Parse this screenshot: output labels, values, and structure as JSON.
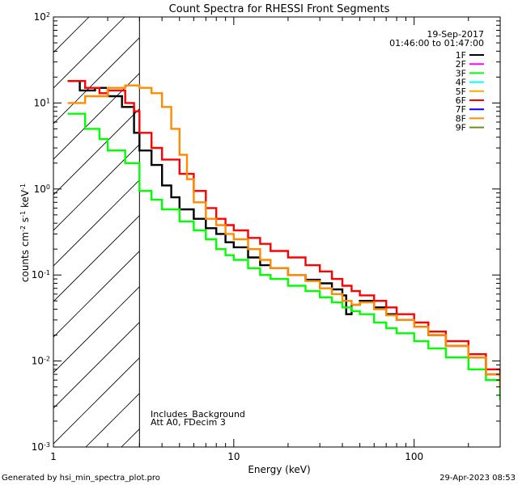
{
  "chart_data": {
    "type": "line",
    "title": "Count Spectra for RHESSI Front Segments",
    "xlabel": "Energy (keV)",
    "ylabel_parts": [
      "counts cm",
      "-2",
      " s",
      "-1",
      " keV",
      "-1"
    ],
    "x_scale": "log",
    "y_scale": "log",
    "xlim": [
      1,
      300
    ],
    "ylim": [
      0.001,
      100
    ],
    "x_ticks": [
      {
        "value": 1,
        "label": "1"
      },
      {
        "value": 10,
        "label": "10"
      },
      {
        "value": 100,
        "label": "100"
      }
    ],
    "y_ticks": [
      {
        "value": 100,
        "base": "10",
        "exp": "2"
      },
      {
        "value": 10,
        "base": "10",
        "exp": "1"
      },
      {
        "value": 1,
        "base": "10",
        "exp": "0"
      },
      {
        "value": 0.1,
        "base": "10",
        "exp": "-1"
      },
      {
        "value": 0.01,
        "base": "10",
        "exp": "-2"
      },
      {
        "value": 0.001,
        "base": "10",
        "exp": "-3"
      }
    ],
    "date": "19-Sep-2017",
    "time_range": "01:46:00 to 01:47:00",
    "hatch_region": [
      1,
      3
    ],
    "annotations": [
      "Includes_Background",
      "Att A0, FDecim 3"
    ],
    "legend": [
      {
        "label": "1F",
        "color": "#000000"
      },
      {
        "label": "2F",
        "color": "#ff00ff"
      },
      {
        "label": "3F",
        "color": "#00ff00"
      },
      {
        "label": "4F",
        "color": "#00ffff"
      },
      {
        "label": "5F",
        "color": "#ffa500"
      },
      {
        "label": "6F",
        "color": "#ff0000"
      },
      {
        "label": "7F",
        "color": "#0000ff"
      },
      {
        "label": "8F",
        "color": "#ff8c00"
      },
      {
        "label": "9F",
        "color": "#6b8e23"
      }
    ],
    "series": [
      {
        "name": "1F",
        "color": "#000000",
        "points": [
          [
            1.2,
            18
          ],
          [
            1.4,
            14
          ],
          [
            1.7,
            15
          ],
          [
            2.0,
            12
          ],
          [
            2.4,
            9
          ],
          [
            2.8,
            4.5
          ],
          [
            3.0,
            2.8
          ],
          [
            3.5,
            1.9
          ],
          [
            4.0,
            1.1
          ],
          [
            4.5,
            0.8
          ],
          [
            5,
            0.58
          ],
          [
            6,
            0.45
          ],
          [
            7,
            0.35
          ],
          [
            8,
            0.3
          ],
          [
            9,
            0.24
          ],
          [
            10,
            0.21
          ],
          [
            12,
            0.16
          ],
          [
            14,
            0.13
          ],
          [
            16,
            0.12
          ],
          [
            20,
            0.1
          ],
          [
            25,
            0.088
          ],
          [
            30,
            0.08
          ],
          [
            35,
            0.068
          ],
          [
            40,
            0.058
          ],
          [
            42,
            0.035
          ],
          [
            45,
            0.045
          ],
          [
            50,
            0.05
          ],
          [
            60,
            0.042
          ],
          [
            70,
            0.035
          ],
          [
            80,
            0.03
          ],
          [
            100,
            0.025
          ],
          [
            120,
            0.02
          ],
          [
            150,
            0.015
          ],
          [
            200,
            0.011
          ],
          [
            250,
            0.007
          ],
          [
            300,
            0.005
          ]
        ]
      },
      {
        "name": "3F",
        "color": "#00ff00",
        "points": [
          [
            1.2,
            7.5
          ],
          [
            1.5,
            5
          ],
          [
            1.8,
            3.8
          ],
          [
            2.0,
            2.8
          ],
          [
            2.5,
            2.0
          ],
          [
            3.0,
            0.95
          ],
          [
            3.5,
            0.75
          ],
          [
            4.0,
            0.58
          ],
          [
            5,
            0.42
          ],
          [
            6,
            0.33
          ],
          [
            7,
            0.26
          ],
          [
            8,
            0.2
          ],
          [
            9,
            0.17
          ],
          [
            10,
            0.15
          ],
          [
            12,
            0.12
          ],
          [
            14,
            0.1
          ],
          [
            16,
            0.09
          ],
          [
            20,
            0.075
          ],
          [
            25,
            0.065
          ],
          [
            30,
            0.055
          ],
          [
            35,
            0.048
          ],
          [
            40,
            0.042
          ],
          [
            45,
            0.038
          ],
          [
            50,
            0.035
          ],
          [
            60,
            0.028
          ],
          [
            70,
            0.024
          ],
          [
            80,
            0.021
          ],
          [
            100,
            0.017
          ],
          [
            120,
            0.014
          ],
          [
            150,
            0.011
          ],
          [
            200,
            0.008
          ],
          [
            250,
            0.006
          ],
          [
            300,
            0.0035
          ]
        ]
      },
      {
        "name": "6F",
        "color": "#ff0000",
        "points": [
          [
            1.2,
            18
          ],
          [
            1.5,
            15
          ],
          [
            1.8,
            13
          ],
          [
            2.0,
            14
          ],
          [
            2.5,
            10
          ],
          [
            2.8,
            8
          ],
          [
            3.0,
            4.5
          ],
          [
            3.5,
            3.0
          ],
          [
            4.0,
            2.2
          ],
          [
            5,
            1.5
          ],
          [
            6,
            0.95
          ],
          [
            7,
            0.6
          ],
          [
            8,
            0.45
          ],
          [
            9,
            0.38
          ],
          [
            10,
            0.33
          ],
          [
            12,
            0.27
          ],
          [
            14,
            0.23
          ],
          [
            16,
            0.19
          ],
          [
            20,
            0.16
          ],
          [
            25,
            0.13
          ],
          [
            30,
            0.11
          ],
          [
            35,
            0.09
          ],
          [
            40,
            0.075
          ],
          [
            45,
            0.065
          ],
          [
            50,
            0.058
          ],
          [
            60,
            0.05
          ],
          [
            70,
            0.042
          ],
          [
            80,
            0.035
          ],
          [
            100,
            0.028
          ],
          [
            120,
            0.022
          ],
          [
            150,
            0.017
          ],
          [
            200,
            0.012
          ],
          [
            250,
            0.008
          ],
          [
            300,
            0.006
          ]
        ]
      },
      {
        "name": "8F",
        "color": "#ff8c00",
        "points": [
          [
            1.2,
            10
          ],
          [
            1.5,
            12
          ],
          [
            2.0,
            15
          ],
          [
            2.5,
            16
          ],
          [
            3.0,
            15
          ],
          [
            3.5,
            13
          ],
          [
            4.0,
            9
          ],
          [
            4.5,
            5
          ],
          [
            5,
            2.5
          ],
          [
            5.5,
            1.3
          ],
          [
            6,
            0.7
          ],
          [
            7,
            0.45
          ],
          [
            8,
            0.38
          ],
          [
            9,
            0.3
          ],
          [
            10,
            0.26
          ],
          [
            12,
            0.2
          ],
          [
            14,
            0.15
          ],
          [
            16,
            0.12
          ],
          [
            20,
            0.1
          ],
          [
            25,
            0.085
          ],
          [
            30,
            0.07
          ],
          [
            35,
            0.06
          ],
          [
            40,
            0.05
          ],
          [
            45,
            0.045
          ],
          [
            50,
            0.048
          ],
          [
            60,
            0.04
          ],
          [
            70,
            0.034
          ],
          [
            80,
            0.03
          ],
          [
            100,
            0.025
          ],
          [
            120,
            0.02
          ],
          [
            150,
            0.015
          ],
          [
            200,
            0.011
          ],
          [
            250,
            0.007
          ],
          [
            300,
            0.005
          ]
        ]
      }
    ]
  },
  "footer": {
    "left": "Generated by hsi_min_spectra_plot.pro",
    "right": "29-Apr-2023 08:53"
  }
}
